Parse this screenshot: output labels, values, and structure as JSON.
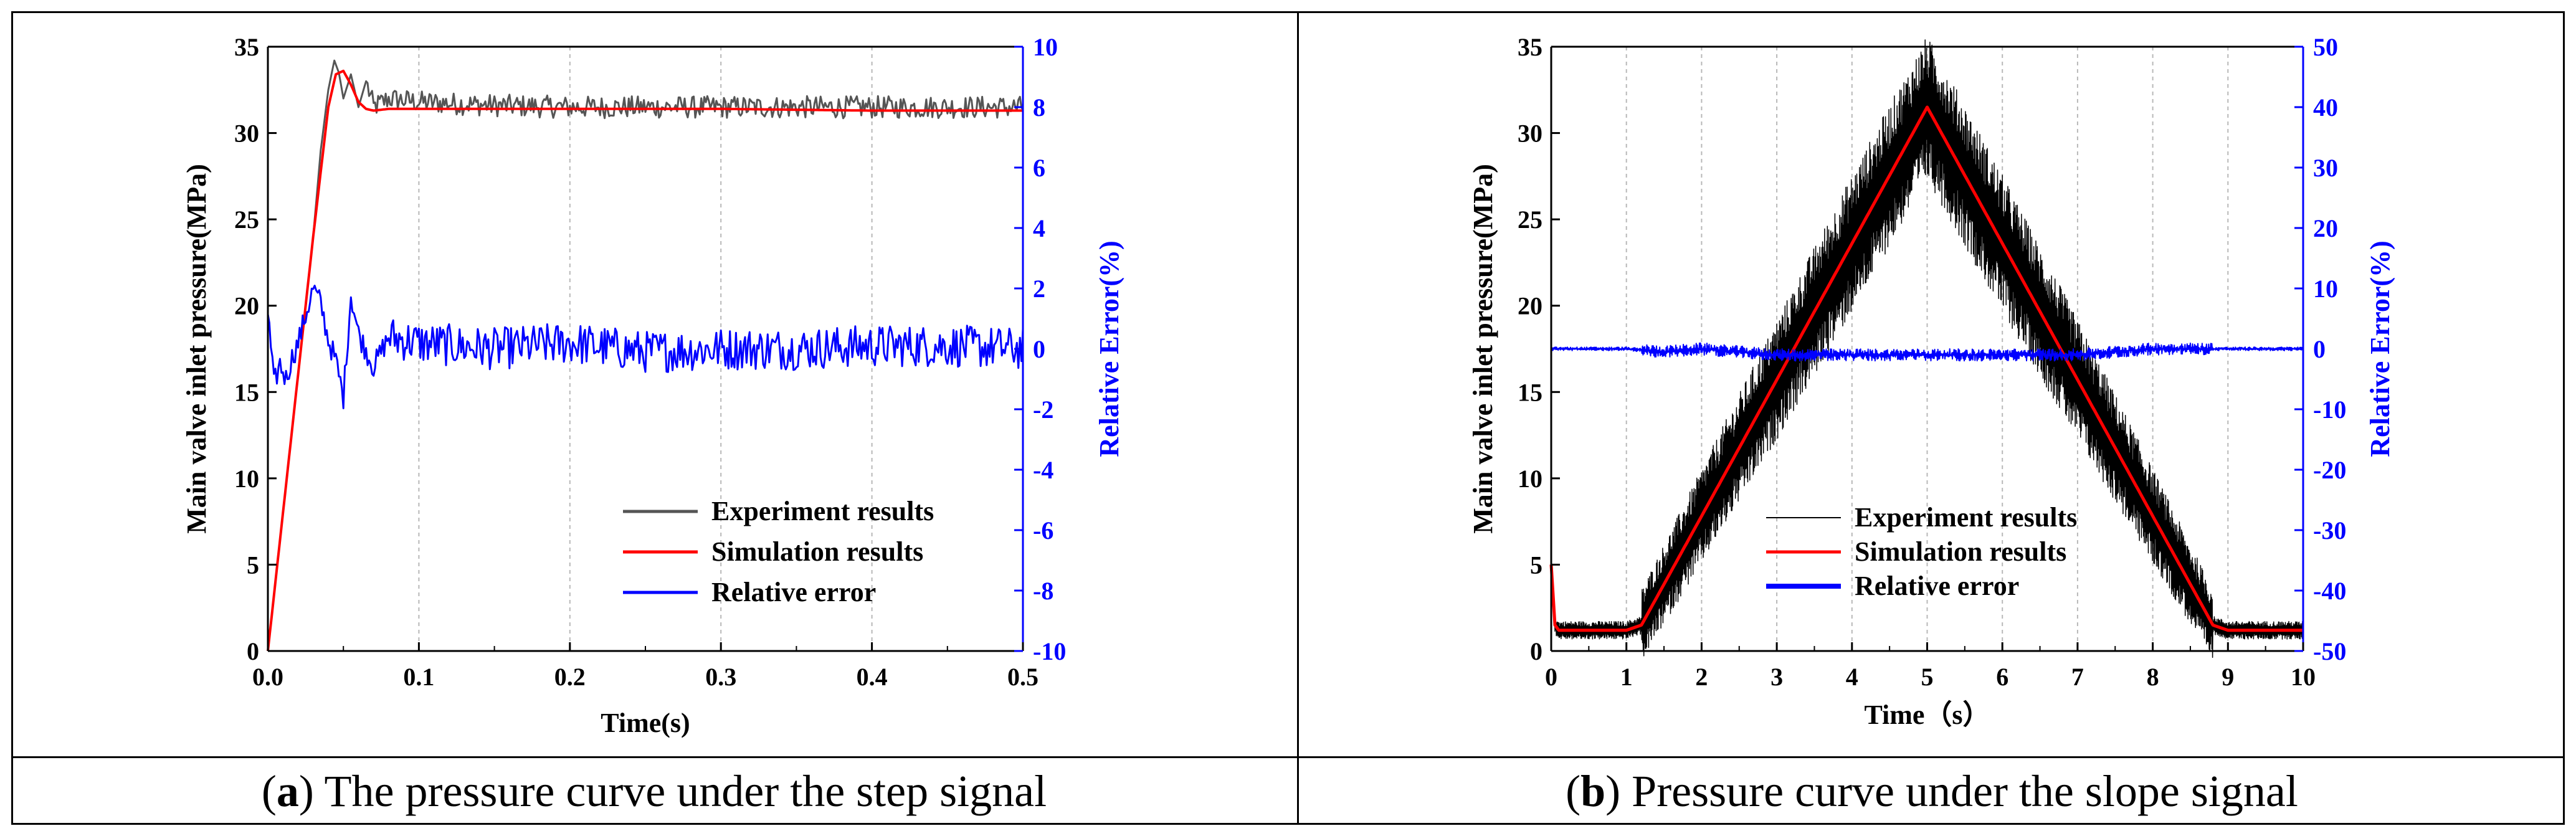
{
  "captions": {
    "a": {
      "letter": "a",
      "text": " The pressure curve under the step signal"
    },
    "b": {
      "letter": "b",
      "text": " Pressure curve under the slope signal"
    }
  },
  "colors": {
    "experiment": "#555555",
    "experiment_b": "#000000",
    "simulation": "#ff0000",
    "error": "#0000ff",
    "axis_right": "#0000ff"
  },
  "chart_data": [
    {
      "type": "line",
      "panel": "a",
      "xlabel": "Time(s)",
      "ylabel": "Main valve inlet pressure(MPa)",
      "y2label": "Relative Error(%)",
      "xlim": [
        0,
        0.5
      ],
      "ylim": [
        0,
        35
      ],
      "y2lim": [
        -10,
        10
      ],
      "xticks": [
        "0.0",
        "0.1",
        "0.2",
        "0.3",
        "0.4",
        "0.5"
      ],
      "yticks": [
        "0",
        "5",
        "10",
        "15",
        "20",
        "25",
        "30",
        "35"
      ],
      "y2ticks": [
        "-10",
        "-8",
        "-6",
        "-4",
        "-2",
        "0",
        "2",
        "4",
        "6",
        "8",
        "10"
      ],
      "legend_position": "bottom-right",
      "legend": [
        "Experiment results",
        "Simulation results",
        "Relative error"
      ],
      "series": [
        {
          "name": "Experiment results",
          "axis": "left",
          "x": [
            0,
            0.01,
            0.02,
            0.03,
            0.035,
            0.04,
            0.044,
            0.047,
            0.05,
            0.055,
            0.06,
            0.065,
            0.07,
            0.08,
            0.1,
            0.15,
            0.2,
            0.25,
            0.3,
            0.35,
            0.4,
            0.45,
            0.5
          ],
          "y": [
            0,
            8,
            16,
            24,
            29,
            32.5,
            34.2,
            33.5,
            32,
            33.4,
            31.5,
            33,
            31.5,
            32,
            31.8,
            31.6,
            31.5,
            31.5,
            31.5,
            31.5,
            31.5,
            31.5,
            31.5
          ]
        },
        {
          "name": "Simulation results",
          "axis": "left",
          "x": [
            0,
            0.01,
            0.02,
            0.03,
            0.04,
            0.045,
            0.05,
            0.055,
            0.06,
            0.065,
            0.07,
            0.08,
            0.1,
            0.2,
            0.3,
            0.4,
            0.5
          ],
          "y": [
            0,
            8,
            16,
            24,
            31.5,
            33.4,
            33.6,
            32.8,
            31.8,
            31.4,
            31.3,
            31.4,
            31.4,
            31.4,
            31.4,
            31.3,
            31.3
          ]
        },
        {
          "name": "Relative error",
          "axis": "right",
          "x": [
            0,
            0.004,
            0.008,
            0.012,
            0.016,
            0.02,
            0.025,
            0.03,
            0.035,
            0.04,
            0.045,
            0.05,
            0.055,
            0.06,
            0.07,
            0.08,
            0.1,
            0.15,
            0.2,
            0.25,
            0.3,
            0.35,
            0.4,
            0.45,
            0.5
          ],
          "y": [
            1.2,
            -1.2,
            -0.5,
            -1.0,
            -0.3,
            0.2,
            1.1,
            2.0,
            1.5,
            0.3,
            -0.4,
            -1.6,
            1.8,
            0.5,
            -0.6,
            0.4,
            0.2,
            0.0,
            0.2,
            -0.1,
            0.0,
            0.0,
            0.1,
            0.1,
            0.0
          ]
        }
      ]
    },
    {
      "type": "line",
      "panel": "b",
      "xlabel": "Time（s）",
      "ylabel": "Main valve inlet pressure(MPa)",
      "y2label": "Relative Error(%)",
      "xlim": [
        0,
        10
      ],
      "ylim": [
        0,
        35
      ],
      "y2lim": [
        -50,
        50
      ],
      "xticks": [
        "0",
        "1",
        "2",
        "3",
        "4",
        "5",
        "6",
        "7",
        "8",
        "9",
        "10"
      ],
      "yticks": [
        "0",
        "5",
        "10",
        "15",
        "20",
        "25",
        "30",
        "35"
      ],
      "y2ticks": [
        "-50",
        "-40",
        "-30",
        "-20",
        "-10",
        "0",
        "10",
        "20",
        "30",
        "40",
        "50"
      ],
      "legend_position": "bottom-center",
      "legend": [
        "Experiment results",
        "Simulation results",
        "Relative error"
      ],
      "series": [
        {
          "name": "Experiment results",
          "axis": "left",
          "x": [
            0,
            0.05,
            0.1,
            1.0,
            1.2,
            5.0,
            8.8,
            9.0,
            10.0
          ],
          "y": [
            5.5,
            1.5,
            1.2,
            1.2,
            1.5,
            31.5,
            1.5,
            1.2,
            1.2
          ]
        },
        {
          "name": "Simulation results",
          "axis": "left",
          "x": [
            0,
            0.05,
            0.1,
            1.0,
            1.2,
            5.0,
            8.8,
            9.0,
            10.0
          ],
          "y": [
            5.0,
            1.5,
            1.2,
            1.2,
            1.5,
            31.5,
            1.5,
            1.2,
            1.2
          ]
        },
        {
          "name": "Relative error",
          "axis": "right",
          "x": [
            0,
            1.0,
            1.5,
            2.0,
            3.0,
            4.0,
            5.0,
            6.0,
            7.0,
            8.0,
            9.0,
            10.0
          ],
          "y": [
            0,
            0,
            -0.5,
            0,
            -1,
            -1,
            -1,
            -1,
            -1,
            0,
            0,
            0
          ]
        }
      ]
    }
  ]
}
